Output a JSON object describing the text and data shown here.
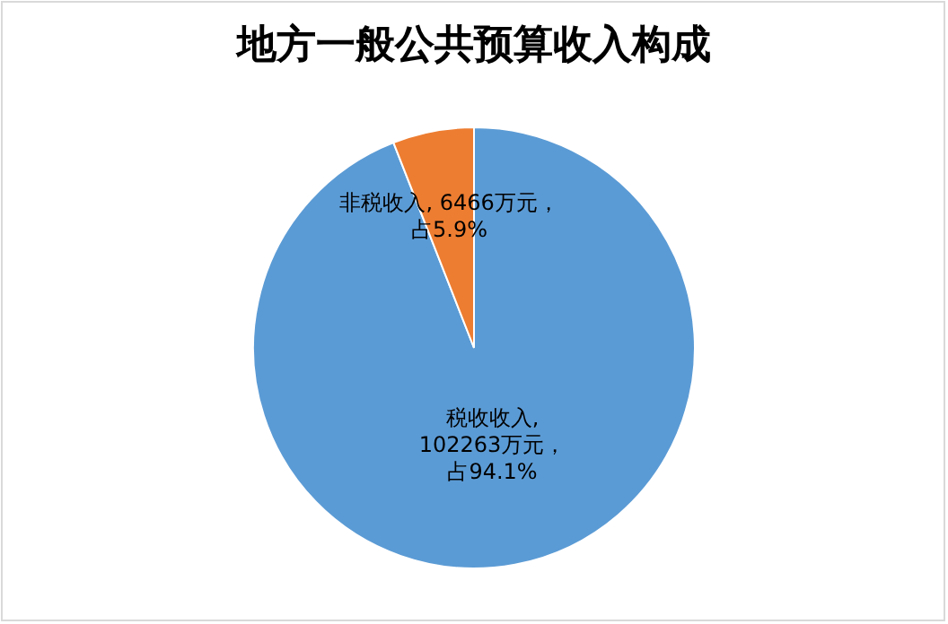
{
  "chart_data": {
    "type": "pie",
    "title": "地方一般公共预算收入构成",
    "categories": [
      "税收收入",
      "非税收入"
    ],
    "values": [
      102263,
      6466
    ],
    "value_labels": [
      ", 102263万元，占94.1%",
      ", 6466万元，占5.9%"
    ],
    "colors": [
      "#5b9bd5",
      "#ed7d31"
    ]
  }
}
